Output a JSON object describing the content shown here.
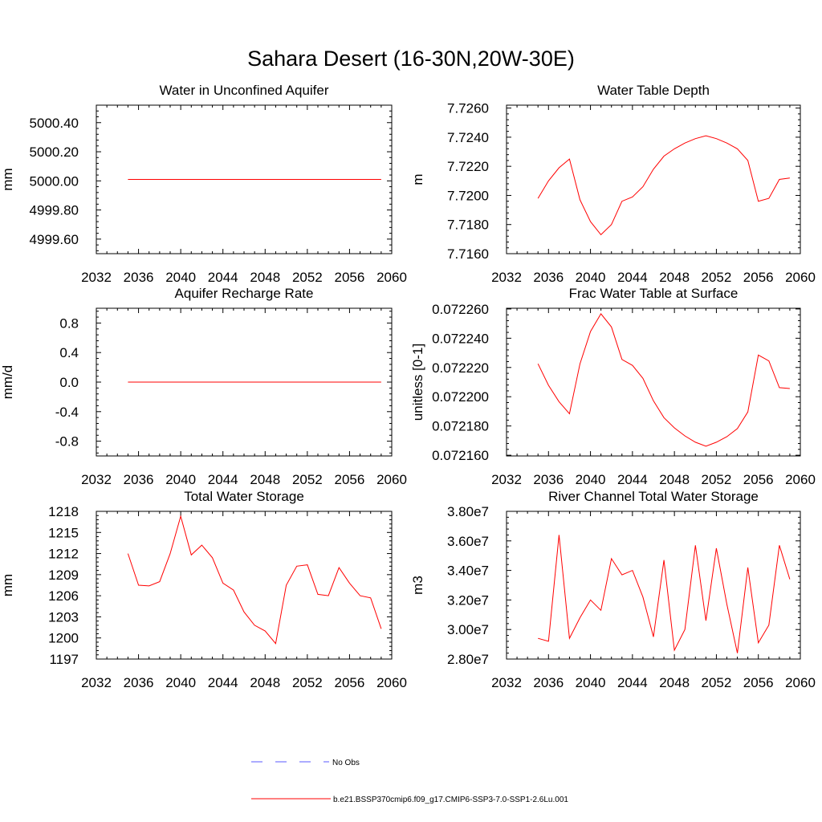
{
  "figure": {
    "title": "Sahara Desert (16-30N,20W-30E)"
  },
  "chart_data": [
    {
      "type": "line",
      "title": "Water in Unconfined Aquifer",
      "ylabel": "mm",
      "xlim": [
        2032,
        2060
      ],
      "ylim": [
        4999.5,
        5000.52
      ],
      "xticks": [
        2032,
        2036,
        2040,
        2044,
        2048,
        2052,
        2056,
        2060
      ],
      "xtick_labels": [
        "2032",
        "2036",
        "2040",
        "2044",
        "2048",
        "2052",
        "2056",
        "2060"
      ],
      "yticks": [
        4999.6,
        4999.8,
        5000.0,
        5000.2,
        5000.4
      ],
      "ytick_labels": [
        "4999.60",
        "4999.80",
        "5000.00",
        "5000.20",
        "5000.40"
      ],
      "x": [
        2035,
        2059
      ],
      "series": [
        {
          "name": "b.e21.BSSP370cmip6.f09_g17.CMIP6-SSP3-7.0-SSP1-2.6Lu.001",
          "values": [
            5000.01,
            5000.01
          ]
        }
      ]
    },
    {
      "type": "line",
      "title": "Water Table Depth",
      "ylabel": "m",
      "xlim": [
        2032,
        2060
      ],
      "ylim": [
        7.716,
        7.7262
      ],
      "xticks": [
        2032,
        2036,
        2040,
        2044,
        2048,
        2052,
        2056,
        2060
      ],
      "xtick_labels": [
        "2032",
        "2036",
        "2040",
        "2044",
        "2048",
        "2052",
        "2056",
        "2060"
      ],
      "yticks": [
        7.716,
        7.718,
        7.72,
        7.722,
        7.724,
        7.726
      ],
      "ytick_labels": [
        "7.7160",
        "7.7180",
        "7.7200",
        "7.7220",
        "7.7240",
        "7.7260"
      ],
      "x": [
        2035,
        2036,
        2037,
        2038,
        2039,
        2040,
        2041,
        2042,
        2043,
        2044,
        2045,
        2046,
        2047,
        2048,
        2049,
        2050,
        2051,
        2052,
        2053,
        2054,
        2055,
        2056,
        2057,
        2058,
        2059
      ],
      "series": [
        {
          "name": "b.e21.BSSP370cmip6.f09_g17.CMIP6-SSP3-7.0-SSP1-2.6Lu.001",
          "values": [
            7.7198,
            7.721,
            7.7219,
            7.7225,
            7.7197,
            7.7182,
            7.7173,
            7.718,
            7.7196,
            7.7199,
            7.7206,
            7.7218,
            7.7227,
            7.7232,
            7.7236,
            7.7239,
            7.7241,
            7.7239,
            7.7236,
            7.7232,
            7.7224,
            7.7196,
            7.7198,
            7.7211,
            7.7212
          ]
        }
      ]
    },
    {
      "type": "line",
      "title": "Aquifer Recharge Rate",
      "ylabel": "mm/d",
      "xlim": [
        2032,
        2060
      ],
      "ylim": [
        -1.0,
        1.0
      ],
      "xticks": [
        2032,
        2036,
        2040,
        2044,
        2048,
        2052,
        2056,
        2060
      ],
      "xtick_labels": [
        "2032",
        "2036",
        "2040",
        "2044",
        "2048",
        "2052",
        "2056",
        "2060"
      ],
      "yticks": [
        -0.8,
        -0.4,
        0.0,
        0.4,
        0.8
      ],
      "ytick_labels": [
        "-0.8",
        "-0.4",
        "0.0",
        "0.4",
        "0.8"
      ],
      "x": [
        2035,
        2059
      ],
      "series": [
        {
          "name": "b.e21.BSSP370cmip6.f09_g17.CMIP6-SSP3-7.0-SSP1-2.6Lu.001",
          "values": [
            0.0,
            0.0
          ]
        }
      ]
    },
    {
      "type": "line",
      "title": "Frac Water Table at Surface",
      "ylabel": "unitless [0-1]",
      "xlim": [
        2032,
        2060
      ],
      "ylim": [
        0.0721595,
        0.0722605
      ],
      "xticks": [
        2032,
        2036,
        2040,
        2044,
        2048,
        2052,
        2056,
        2060
      ],
      "xtick_labels": [
        "2032",
        "2036",
        "2040",
        "2044",
        "2048",
        "2052",
        "2056",
        "2060"
      ],
      "yticks": [
        0.07216,
        0.07218,
        0.0722,
        0.07222,
        0.07224,
        0.07226
      ],
      "ytick_labels": [
        "0.072160",
        "0.072180",
        "0.072200",
        "0.072220",
        "0.072240",
        "0.072260"
      ],
      "x": [
        2035,
        2036,
        2037,
        2038,
        2039,
        2040,
        2041,
        2042,
        2043,
        2044,
        2045,
        2046,
        2047,
        2048,
        2049,
        2050,
        2051,
        2052,
        2053,
        2054,
        2055,
        2056,
        2057,
        2058,
        2059
      ],
      "series": [
        {
          "name": "b.e21.BSSP370cmip6.f09_g17.CMIP6-SSP3-7.0-SSP1-2.6Lu.001",
          "values": [
            0.0722225,
            0.0722078,
            0.0721966,
            0.0721884,
            0.0722225,
            0.0722446,
            0.0722567,
            0.0722477,
            0.0722255,
            0.0722214,
            0.0722126,
            0.0721972,
            0.0721857,
            0.0721787,
            0.0721732,
            0.0721689,
            0.0721662,
            0.0721689,
            0.0721727,
            0.0721782,
            0.0721896,
            0.0722285,
            0.0722245,
            0.0722062,
            0.0722056
          ]
        }
      ]
    },
    {
      "type": "line",
      "title": "Total Water Storage",
      "ylabel": "mm",
      "xlim": [
        2032,
        2060
      ],
      "ylim": [
        1197,
        1218
      ],
      "xticks": [
        2032,
        2036,
        2040,
        2044,
        2048,
        2052,
        2056,
        2060
      ],
      "xtick_labels": [
        "2032",
        "2036",
        "2040",
        "2044",
        "2048",
        "2052",
        "2056",
        "2060"
      ],
      "yticks": [
        1197,
        1200,
        1203,
        1206,
        1209,
        1212,
        1215,
        1218
      ],
      "ytick_labels": [
        "1197",
        "1200",
        "1203",
        "1206",
        "1209",
        "1212",
        "1215",
        "1218"
      ],
      "x": [
        2035,
        2036,
        2037,
        2038,
        2039,
        2040,
        2041,
        2042,
        2043,
        2044,
        2045,
        2046,
        2047,
        2048,
        2049,
        2050,
        2051,
        2052,
        2053,
        2054,
        2055,
        2056,
        2057,
        2058,
        2059
      ],
      "series": [
        {
          "name": "b.e21.BSSP370cmip6.f09_g17.CMIP6-SSP3-7.0-SSP1-2.6Lu.001",
          "values": [
            1212.0,
            1207.5,
            1207.4,
            1208.0,
            1212.0,
            1217.3,
            1211.8,
            1213.2,
            1211.4,
            1207.8,
            1206.8,
            1203.7,
            1201.8,
            1201.0,
            1199.2,
            1207.5,
            1210.2,
            1210.4,
            1206.2,
            1206.0,
            1210.0,
            1207.8,
            1206.0,
            1205.7,
            1201.3
          ]
        }
      ]
    },
    {
      "type": "line",
      "title": "River Channel Total Water Storage",
      "ylabel": "m3",
      "xlim": [
        2032,
        2060
      ],
      "ylim": [
        28000000.0,
        38000000.0
      ],
      "xticks": [
        2032,
        2036,
        2040,
        2044,
        2048,
        2052,
        2056,
        2060
      ],
      "xtick_labels": [
        "2032",
        "2036",
        "2040",
        "2044",
        "2048",
        "2052",
        "2056",
        "2060"
      ],
      "yticks": [
        28000000.0,
        30000000.0,
        32000000.0,
        34000000.0,
        36000000.0,
        38000000.0
      ],
      "ytick_labels": [
        "2.80e7",
        "3.00e7",
        "3.20e7",
        "3.40e7",
        "3.60e7",
        "3.80e7"
      ],
      "x": [
        2035,
        2036,
        2037,
        2038,
        2039,
        2040,
        2041,
        2042,
        2043,
        2044,
        2045,
        2046,
        2047,
        2048,
        2049,
        2050,
        2051,
        2052,
        2053,
        2054,
        2055,
        2056,
        2057,
        2058,
        2059
      ],
      "series": [
        {
          "name": "b.e21.BSSP370cmip6.f09_g17.CMIP6-SSP3-7.0-SSP1-2.6Lu.001",
          "values": [
            29400000.0,
            29200000.0,
            36400000.0,
            29400000.0,
            30800000.0,
            32000000.0,
            31300000.0,
            34800000.0,
            33700000.0,
            34000000.0,
            32200000.0,
            29500000.0,
            34700000.0,
            28600000.0,
            30000000.0,
            35700000.0,
            30600000.0,
            35500000.0,
            31700000.0,
            28400000.0,
            34200000.0,
            29100000.0,
            30300000.0,
            35700000.0,
            33400000.0
          ]
        }
      ]
    }
  ],
  "legend": {
    "items": [
      {
        "label": "No Obs",
        "color": "#5a5aff",
        "dash": "dashed"
      },
      {
        "label": "b.e21.BSSP370cmip6.f09_g17.CMIP6-SSP3-7.0-SSP1-2.6Lu.001",
        "color": "#ff0000",
        "dash": "solid"
      }
    ]
  }
}
